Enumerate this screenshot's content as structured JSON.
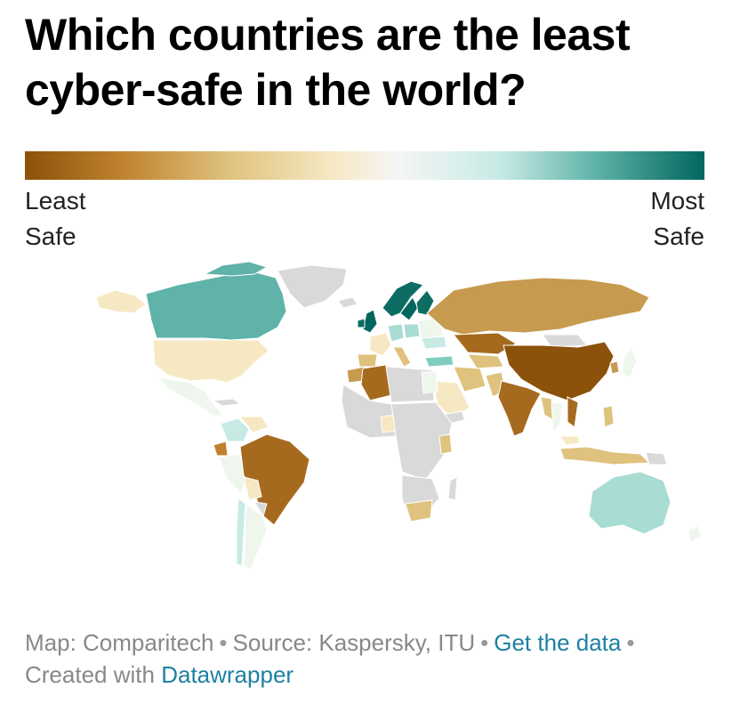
{
  "title": "Which countries are the least cyber-safe in the world?",
  "legend": {
    "left_line1": "Least",
    "left_line2": "Safe",
    "right_line1": "Most",
    "right_line2": "Safe",
    "colors": [
      "#8c510a",
      "#bf812d",
      "#dfc27d",
      "#f6e8c3",
      "#f5f5f5",
      "#c7eae5",
      "#80cdc1",
      "#35978f",
      "#01665e"
    ]
  },
  "map": {
    "nodata_color": "#d9d9d9",
    "scale": [
      "#8c510a",
      "#a66a1f",
      "#c69a4f",
      "#dfc27d",
      "#f6e8c3",
      "#eef6ee",
      "#a9dcd3",
      "#5fb3a8",
      "#0e6d63"
    ]
  },
  "footer": {
    "map_credit": "Map: Comparitech",
    "source": "Source: Kaspersky, ITU",
    "get_data": "Get the data",
    "created_with": "Created with",
    "datawrapper": "Datawrapper",
    "separator": "•"
  }
}
